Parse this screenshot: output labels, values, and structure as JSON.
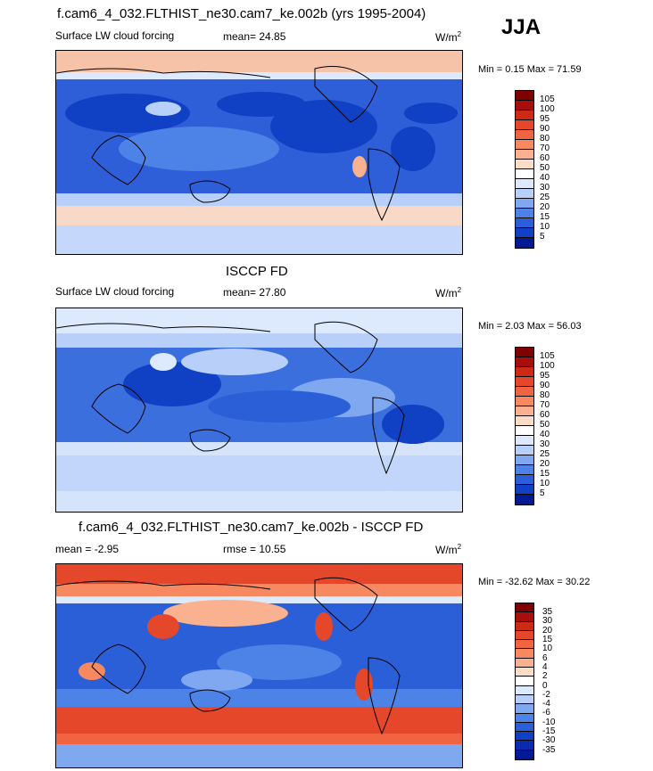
{
  "season": "JJA",
  "panels": [
    {
      "title": "f.cam6_4_032.FLTHIST_ne30.cam7_ke.002b (yrs 1995-2004)",
      "variable": "Surface LW cloud forcing",
      "mean_text": "mean=  24.85",
      "units": "W/m",
      "units_sup": "2",
      "minmax": "Min =   0.15 Max =  71.59",
      "levels": [
        "105",
        "100",
        "95",
        "90",
        "80",
        "70",
        "60",
        "50",
        "40",
        "30",
        "25",
        "20",
        "15",
        "10",
        "5"
      ],
      "colors": [
        "#7f0000",
        "#a70e0c",
        "#cc2a15",
        "#e4472a",
        "#f0643f",
        "#f6895f",
        "#f9b190",
        "#fbdcc7",
        "#ffffff",
        "#dde9fc",
        "#b7cff9",
        "#7fa8f1",
        "#4d83e6",
        "#2a5fd8",
        "#1040c4",
        "#001a96"
      ]
    },
    {
      "title": "ISCCP FD",
      "variable": "Surface LW cloud forcing",
      "mean_text": "mean=  27.80",
      "units": "W/m",
      "units_sup": "2",
      "minmax": "Min =   2.03 Max =  56.03",
      "levels": [
        "105",
        "100",
        "95",
        "90",
        "80",
        "70",
        "60",
        "50",
        "40",
        "30",
        "25",
        "20",
        "15",
        "10",
        "5"
      ],
      "colors": [
        "#7f0000",
        "#a70e0c",
        "#cc2a15",
        "#e4472a",
        "#f0643f",
        "#f6895f",
        "#f9b190",
        "#fbdcc7",
        "#ffffff",
        "#dde9fc",
        "#b7cff9",
        "#7fa8f1",
        "#4d83e6",
        "#2a5fd8",
        "#1040c4",
        "#001a96"
      ]
    },
    {
      "title": "f.cam6_4_032.FLTHIST_ne30.cam7_ke.002b - ISCCP FD",
      "mean_text": "mean =  -2.95",
      "rmse_text": "rmse =  10.55",
      "units": "W/m",
      "units_sup": "2",
      "minmax": "Min = -32.62 Max =  30.22",
      "levels": [
        "35",
        "30",
        "20",
        "15",
        "10",
        "6",
        "4",
        "2",
        "0",
        "-2",
        "-4",
        "-6",
        "-10",
        "-15",
        "-30",
        "-35"
      ],
      "colors": [
        "#7f0000",
        "#a70e0c",
        "#cc2a15",
        "#e4472a",
        "#f0643f",
        "#f6895f",
        "#f9b190",
        "#fbdcc7",
        "#ffffff",
        "#dde9fc",
        "#b7cff9",
        "#7fa8f1",
        "#4d83e6",
        "#2a5fd8",
        "#1040c4",
        "#0a2bb0",
        "#001a96"
      ]
    }
  ]
}
